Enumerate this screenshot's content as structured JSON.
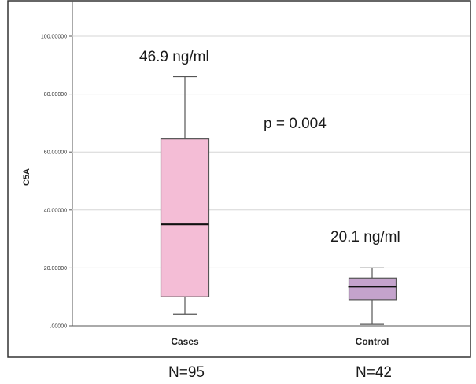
{
  "chart_data": {
    "type": "box",
    "ylabel": "C5A",
    "ylim": [
      0,
      110
    ],
    "yticks": [
      0,
      20,
      40,
      60,
      80,
      100
    ],
    "ytick_labels": [
      ".00000",
      "20.00000",
      "40.00000",
      "60.00000",
      "80.00000",
      "100.00000"
    ],
    "grid": "horizontal",
    "categories": [
      "Cases",
      "Control"
    ],
    "boxes": [
      {
        "category": "Cases",
        "min": 4,
        "q1": 10,
        "median": 35,
        "q3": 64.5,
        "max": 86,
        "color": "#f4bdd6"
      },
      {
        "category": "Control",
        "min": 0.5,
        "q1": 9,
        "median": 13.5,
        "q3": 16.5,
        "max": 20,
        "color": "#c4a3cc"
      }
    ],
    "annotations": [
      {
        "text": "46.9 ng/ml",
        "x": "Cases",
        "y": 94
      },
      {
        "text": "p = 0.004",
        "x": "between",
        "y": 69
      },
      {
        "text": "20.1 ng/ml",
        "x": "Control",
        "y": 31
      }
    ],
    "n_labels": [
      "N=95",
      "N=42"
    ]
  }
}
